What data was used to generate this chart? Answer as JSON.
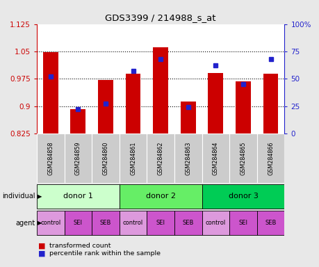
{
  "title": "GDS3399 / 214988_s_at",
  "samples": [
    "GSM284858",
    "GSM284859",
    "GSM284860",
    "GSM284861",
    "GSM284862",
    "GSM284863",
    "GSM284864",
    "GSM284865",
    "GSM284866"
  ],
  "transformed_count": [
    1.047,
    0.892,
    0.972,
    0.988,
    1.062,
    0.912,
    0.99,
    0.967,
    0.988
  ],
  "percentile_rank": [
    52,
    22,
    27,
    57,
    68,
    24,
    62,
    45,
    68
  ],
  "ylim_left": [
    0.825,
    1.125
  ],
  "ylim_right": [
    0,
    100
  ],
  "yticks_left": [
    0.825,
    0.9,
    0.975,
    1.05,
    1.125
  ],
  "yticks_right": [
    0,
    25,
    50,
    75,
    100
  ],
  "ytick_labels_right": [
    "0",
    "25",
    "50",
    "75",
    "100%"
  ],
  "bar_color": "#cc0000",
  "marker_color": "#2222cc",
  "bg_color": "#e8e8e8",
  "plot_bg": "#ffffff",
  "individual_labels": [
    "donor 1",
    "donor 2",
    "donor 3"
  ],
  "individual_colors": [
    "#ccffcc",
    "#66ee66",
    "#00cc55"
  ],
  "agent_labels": [
    "control",
    "SEI",
    "SEB",
    "control",
    "SEI",
    "SEB",
    "control",
    "SEI",
    "SEB"
  ],
  "agent_colors": [
    "#dd99dd",
    "#cc55cc",
    "#cc55cc",
    "#dd99dd",
    "#cc55cc",
    "#cc55cc",
    "#dd99dd",
    "#cc55cc",
    "#cc55cc"
  ],
  "sample_bg": "#cccccc"
}
